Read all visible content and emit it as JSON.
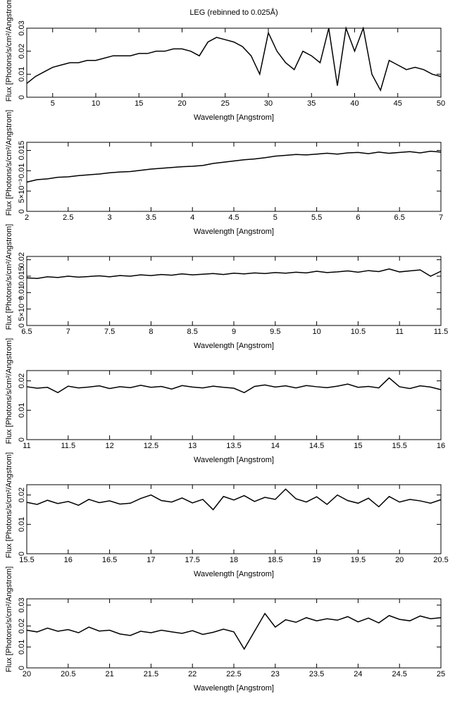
{
  "chart_data": [
    {
      "type": "line",
      "title": "LEG (rebinned to 0.025Å)",
      "xlabel": "Wavelength [Angstrom]",
      "ylabel": "Flux [Photons/s/cm²/Angstrom]",
      "color": "#000000",
      "x": [
        2,
        3,
        4,
        5,
        6,
        7,
        8,
        9,
        10,
        11,
        12,
        13,
        14,
        15,
        16,
        17,
        18,
        19,
        20,
        21,
        22,
        23,
        24,
        25,
        26,
        27,
        28,
        29,
        30,
        31,
        32,
        33,
        34,
        35,
        36,
        37,
        38,
        39,
        40,
        41,
        42,
        43,
        44,
        45,
        46,
        47,
        48,
        49,
        50
      ],
      "values": [
        0.006,
        0.009,
        0.011,
        0.013,
        0.014,
        0.015,
        0.015,
        0.016,
        0.016,
        0.017,
        0.018,
        0.018,
        0.018,
        0.019,
        0.019,
        0.02,
        0.02,
        0.021,
        0.021,
        0.02,
        0.018,
        0.024,
        0.026,
        0.025,
        0.024,
        0.022,
        0.018,
        0.01,
        0.028,
        0.02,
        0.015,
        0.012,
        0.02,
        0.018,
        0.015,
        0.03,
        0.005,
        0.03,
        0.02,
        0.03,
        0.01,
        0.003,
        0.016,
        0.014,
        0.012,
        0.013,
        0.012,
        0.01,
        0.009
      ],
      "xlim": [
        2,
        50
      ],
      "xticks": [
        5,
        10,
        15,
        20,
        25,
        30,
        35,
        40,
        45,
        50
      ],
      "ylim": [
        0,
        0.03
      ],
      "yticks": [
        0,
        0.01,
        0.02,
        0.03
      ]
    },
    {
      "type": "line",
      "xlabel": "Wavelength [Angstrom]",
      "ylabel": "Flux [Photons/s/cm²/Angstrom]",
      "color": "#000000",
      "x": [
        2,
        2.125,
        2.25,
        2.375,
        2.5,
        2.625,
        2.75,
        2.875,
        3,
        3.125,
        3.25,
        3.375,
        3.5,
        3.625,
        3.75,
        3.875,
        4,
        4.125,
        4.25,
        4.375,
        4.5,
        4.625,
        4.75,
        4.875,
        5,
        5.125,
        5.25,
        5.375,
        5.5,
        5.625,
        5.75,
        5.875,
        6,
        6.125,
        6.25,
        6.375,
        6.5,
        6.625,
        6.75,
        6.875,
        7
      ],
      "values": [
        0.0072,
        0.0078,
        0.008,
        0.0084,
        0.0085,
        0.0088,
        0.009,
        0.0092,
        0.0095,
        0.0097,
        0.0098,
        0.0101,
        0.0104,
        0.0106,
        0.0108,
        0.011,
        0.0111,
        0.0113,
        0.0118,
        0.0121,
        0.0124,
        0.0127,
        0.0129,
        0.0132,
        0.0136,
        0.0138,
        0.014,
        0.0139,
        0.0141,
        0.0143,
        0.0141,
        0.0144,
        0.0145,
        0.0142,
        0.0146,
        0.0143,
        0.0145,
        0.0147,
        0.0144,
        0.0148,
        0.0146
      ],
      "xlim": [
        2,
        7
      ],
      "xticks": [
        2,
        2.5,
        3,
        3.5,
        4,
        4.5,
        5,
        5.5,
        6,
        6.5,
        7
      ],
      "ylim": [
        0,
        0.017
      ],
      "yticks": [
        0,
        {
          "value": 0.005,
          "label": "5×10⁻³"
        },
        0.01,
        0.015
      ]
    },
    {
      "type": "line",
      "xlabel": "Wavelength [Angstrom]",
      "ylabel": "Flux [Photons/s/cm²/Angstrom]",
      "color": "#000000",
      "x": [
        6.5,
        6.625,
        6.75,
        6.875,
        7,
        7.125,
        7.25,
        7.375,
        7.5,
        7.625,
        7.75,
        7.875,
        8,
        8.125,
        8.25,
        8.375,
        8.5,
        8.625,
        8.75,
        8.875,
        9,
        9.125,
        9.25,
        9.375,
        9.5,
        9.625,
        9.75,
        9.875,
        10,
        10.125,
        10.25,
        10.375,
        10.5,
        10.625,
        10.75,
        10.875,
        11,
        11.125,
        11.25,
        11.375,
        11.5
      ],
      "values": [
        0.0145,
        0.0143,
        0.0148,
        0.0146,
        0.015,
        0.0147,
        0.0149,
        0.0151,
        0.0148,
        0.0152,
        0.015,
        0.0154,
        0.0152,
        0.0155,
        0.0153,
        0.0157,
        0.0154,
        0.0156,
        0.0158,
        0.0155,
        0.0159,
        0.0157,
        0.016,
        0.0158,
        0.0161,
        0.0159,
        0.0162,
        0.016,
        0.0165,
        0.0161,
        0.0163,
        0.0166,
        0.0162,
        0.0167,
        0.0164,
        0.0172,
        0.0163,
        0.0166,
        0.0169,
        0.015,
        0.0165
      ],
      "xlim": [
        6.5,
        11.5
      ],
      "xticks": [
        6.5,
        7,
        7.5,
        8,
        8.5,
        9,
        9.5,
        10,
        10.5,
        11,
        11.5
      ],
      "ylim": [
        0,
        0.021
      ],
      "yticks": [
        0,
        {
          "value": 0.005,
          "label": "5×10⁻³"
        },
        0.01,
        0.015,
        0.02
      ]
    },
    {
      "type": "line",
      "xlabel": "Wavelength [Angstrom]",
      "ylabel": "Flux [Photons/s/cm²/Angstrom]",
      "color": "#000000",
      "x": [
        11,
        11.125,
        11.25,
        11.375,
        11.5,
        11.625,
        11.75,
        11.875,
        12,
        12.125,
        12.25,
        12.375,
        12.5,
        12.625,
        12.75,
        12.875,
        13,
        13.125,
        13.25,
        13.375,
        13.5,
        13.625,
        13.75,
        13.875,
        14,
        14.125,
        14.25,
        14.375,
        14.5,
        14.625,
        14.75,
        14.875,
        15,
        15.125,
        15.25,
        15.375,
        15.5,
        15.625,
        15.75,
        15.875,
        16
      ],
      "values": [
        0.018,
        0.0175,
        0.0178,
        0.016,
        0.0182,
        0.0176,
        0.0179,
        0.0183,
        0.0174,
        0.018,
        0.0177,
        0.0185,
        0.0178,
        0.0181,
        0.0172,
        0.0184,
        0.0179,
        0.0176,
        0.0182,
        0.0178,
        0.0175,
        0.016,
        0.0181,
        0.0186,
        0.0179,
        0.0183,
        0.0176,
        0.0184,
        0.018,
        0.0177,
        0.0182,
        0.0189,
        0.0178,
        0.0181,
        0.0176,
        0.021,
        0.018,
        0.0174,
        0.0183,
        0.0179,
        0.017
      ],
      "xlim": [
        11,
        16
      ],
      "xticks": [
        11,
        11.5,
        12,
        12.5,
        13,
        13.5,
        14,
        14.5,
        15,
        15.5,
        16
      ],
      "ylim": [
        0,
        0.0235
      ],
      "yticks": [
        0,
        0.01,
        0.02
      ]
    },
    {
      "type": "line",
      "xlabel": "Wavelength [Angstrom]",
      "ylabel": "Flux [Photons/s/cm²/Angstrom]",
      "color": "#000000",
      "x": [
        15.5,
        15.625,
        15.75,
        15.875,
        16,
        16.125,
        16.25,
        16.375,
        16.5,
        16.625,
        16.75,
        16.875,
        17,
        17.125,
        17.25,
        17.375,
        17.5,
        17.625,
        17.75,
        17.875,
        18,
        18.125,
        18.25,
        18.375,
        18.5,
        18.625,
        18.75,
        18.875,
        19,
        19.125,
        19.25,
        19.375,
        19.5,
        19.625,
        19.75,
        19.875,
        20,
        20.125,
        20.25,
        20.375,
        20.5
      ],
      "values": [
        0.0175,
        0.0168,
        0.0182,
        0.0171,
        0.0178,
        0.0165,
        0.0185,
        0.0174,
        0.018,
        0.0169,
        0.0172,
        0.0188,
        0.02,
        0.0181,
        0.0176,
        0.019,
        0.0173,
        0.0185,
        0.015,
        0.0195,
        0.0183,
        0.0198,
        0.0178,
        0.0192,
        0.0185,
        0.022,
        0.0187,
        0.0176,
        0.0194,
        0.0168,
        0.02,
        0.0181,
        0.0172,
        0.0189,
        0.016,
        0.0195,
        0.0176,
        0.0185,
        0.018,
        0.0172,
        0.0184
      ],
      "xlim": [
        15.5,
        20.5
      ],
      "xticks": [
        15.5,
        16,
        16.5,
        17,
        17.5,
        18,
        18.5,
        19,
        19.5,
        20,
        20.5
      ],
      "ylim": [
        0,
        0.0235
      ],
      "yticks": [
        0,
        0.01,
        0.02
      ]
    },
    {
      "type": "line",
      "xlabel": "Wavelength [Angstrom]",
      "ylabel": "Flux [Photons/s/cm²/Angstrom]",
      "color": "#000000",
      "x": [
        20,
        20.125,
        20.25,
        20.375,
        20.5,
        20.625,
        20.75,
        20.875,
        21,
        21.125,
        21.25,
        21.375,
        21.5,
        21.625,
        21.75,
        21.875,
        22,
        22.125,
        22.25,
        22.375,
        22.5,
        22.625,
        22.75,
        22.875,
        23,
        23.125,
        23.25,
        23.375,
        23.5,
        23.625,
        23.75,
        23.875,
        24,
        24.125,
        24.25,
        24.375,
        24.5,
        24.625,
        24.75,
        24.875,
        25
      ],
      "values": [
        0.018,
        0.0172,
        0.019,
        0.0175,
        0.0183,
        0.0168,
        0.0195,
        0.0176,
        0.018,
        0.0162,
        0.0155,
        0.0175,
        0.0168,
        0.018,
        0.0172,
        0.0165,
        0.0178,
        0.016,
        0.017,
        0.0185,
        0.0172,
        0.009,
        0.0175,
        0.026,
        0.0195,
        0.023,
        0.0218,
        0.024,
        0.0225,
        0.0235,
        0.0228,
        0.0245,
        0.022,
        0.0238,
        0.0215,
        0.025,
        0.0232,
        0.0225,
        0.0248,
        0.0235,
        0.024
      ],
      "xlim": [
        20,
        25
      ],
      "xticks": [
        20,
        20.5,
        21,
        21.5,
        22,
        22.5,
        23,
        23.5,
        24,
        24.5,
        25
      ],
      "ylim": [
        0,
        0.033
      ],
      "yticks": [
        0,
        0.01,
        0.02,
        0.03
      ]
    }
  ]
}
